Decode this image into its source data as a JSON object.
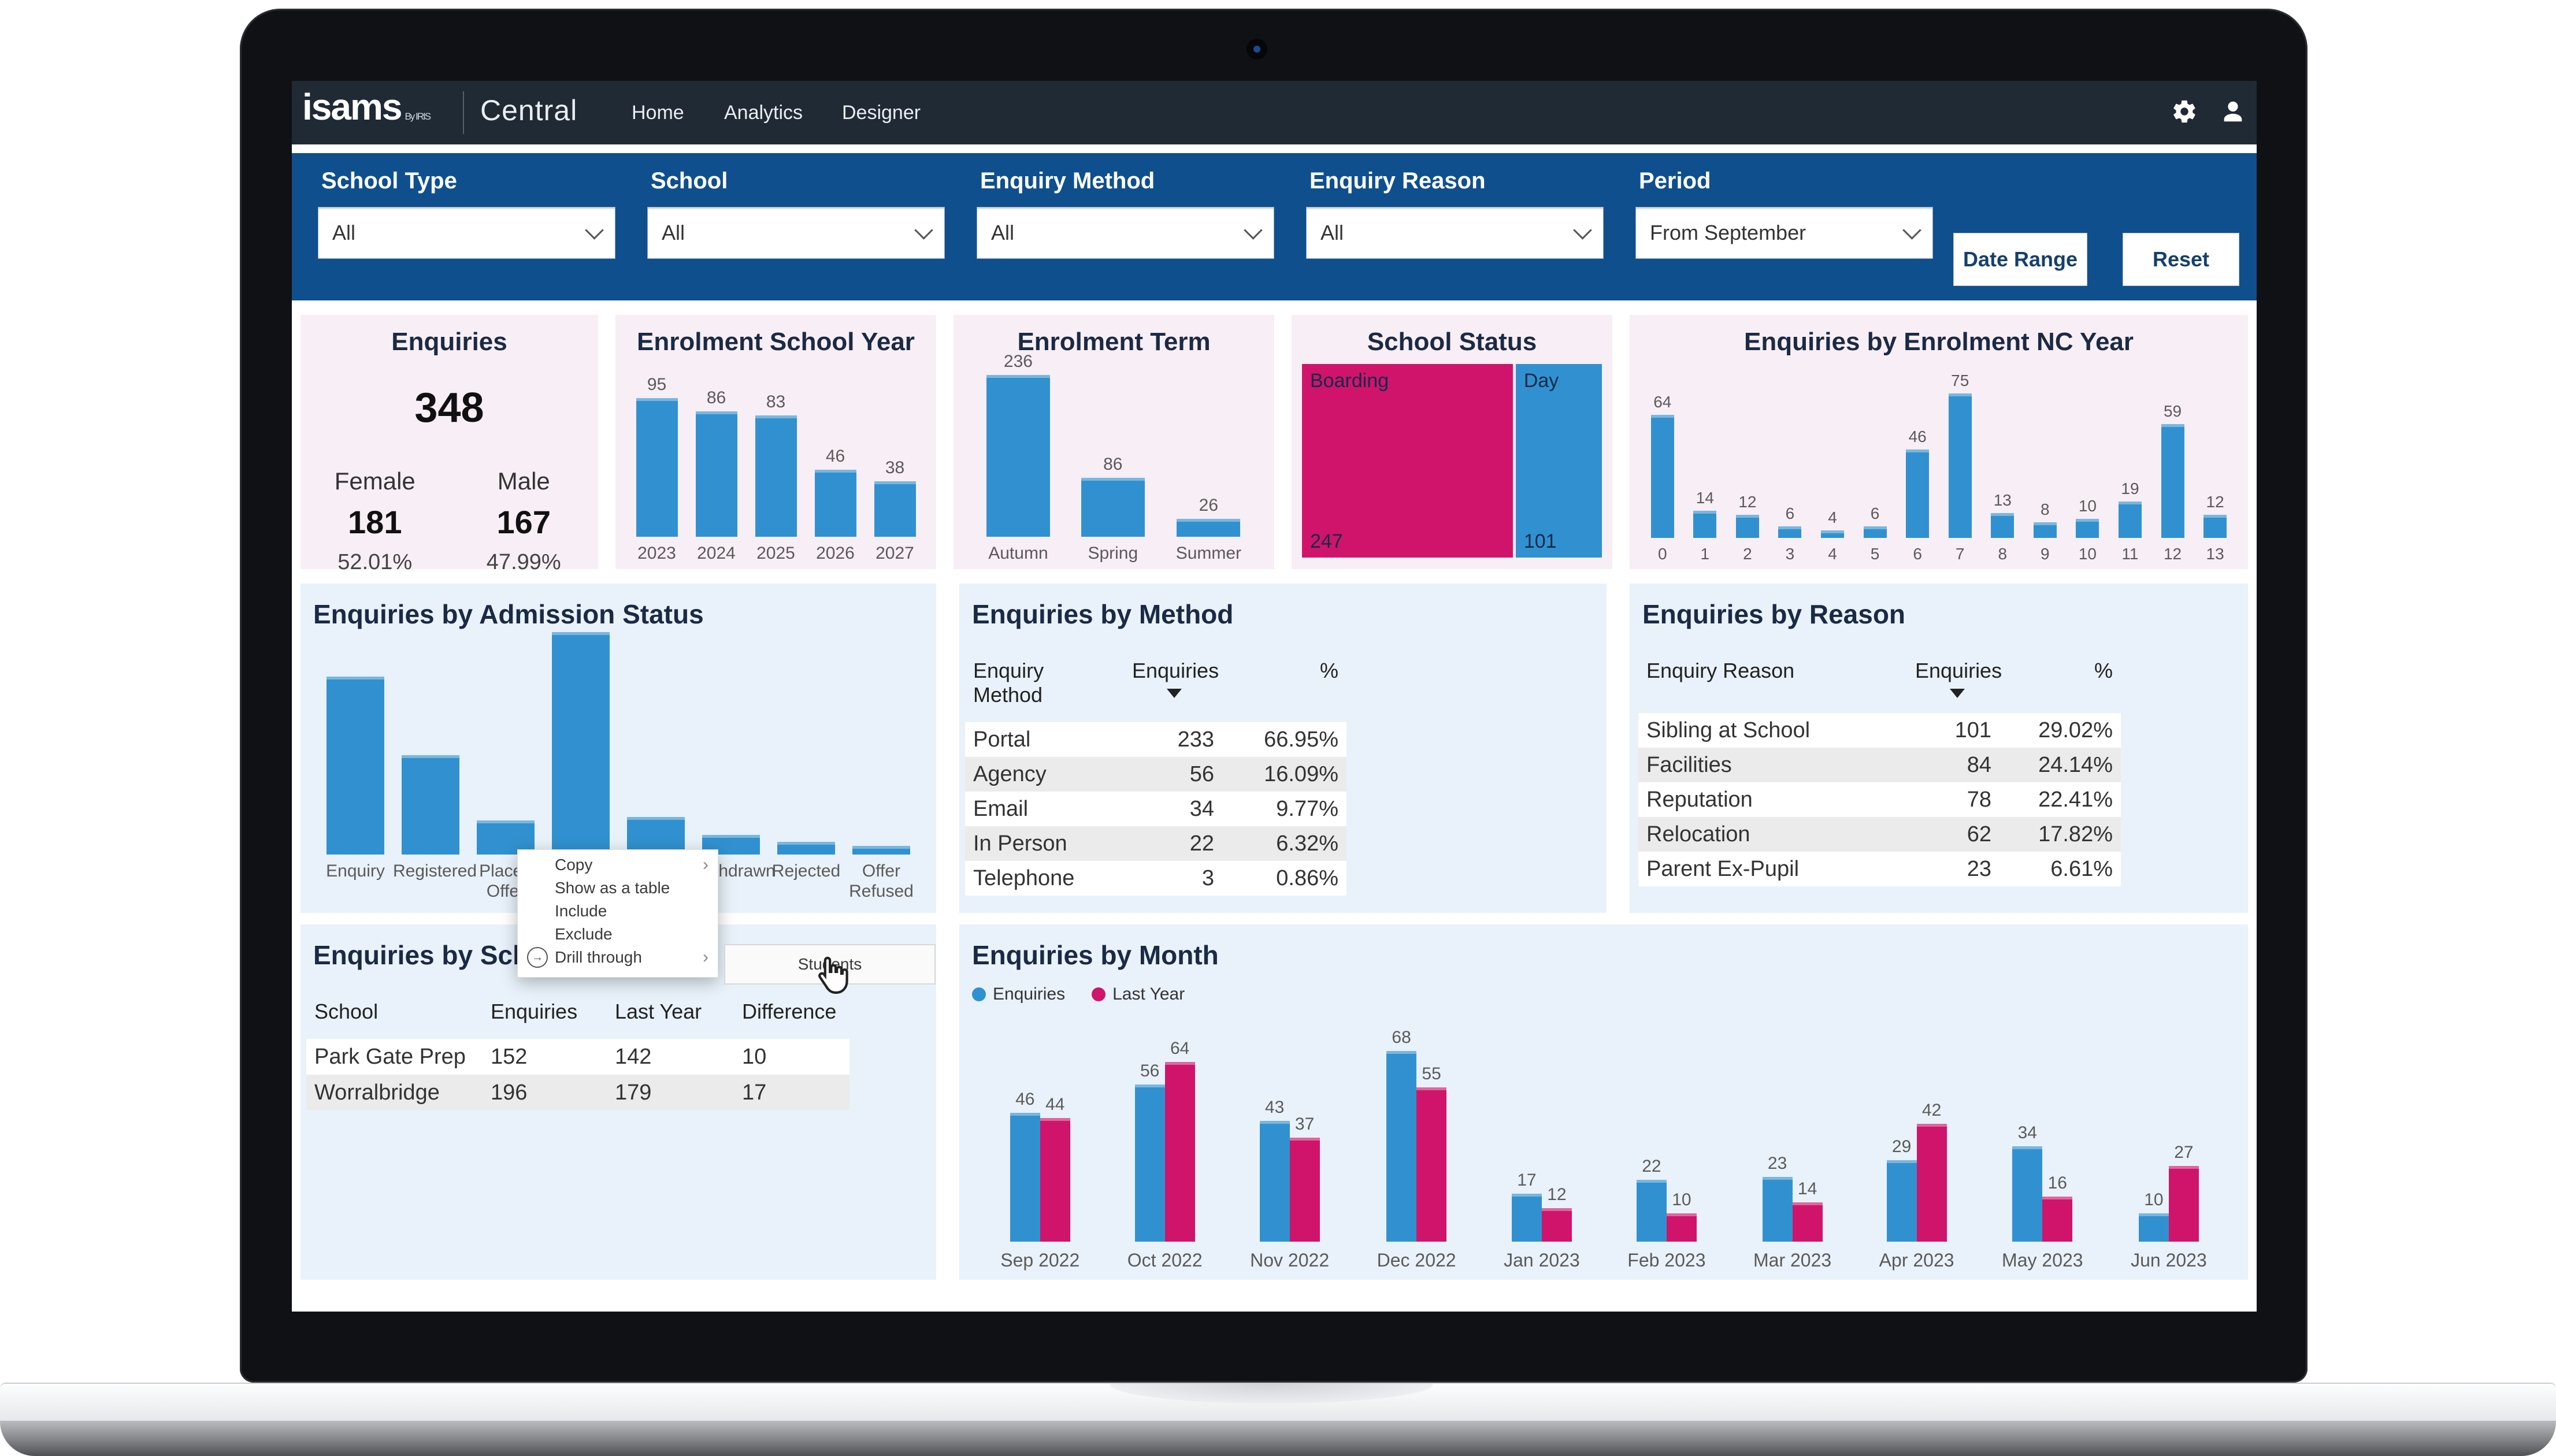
{
  "nav": {
    "brand": "isams",
    "brand_suffix": "By IRIS",
    "product": "Central",
    "items": [
      "Home",
      "Analytics",
      "Designer"
    ],
    "icons": [
      "gear-icon",
      "user-icon"
    ]
  },
  "filters": {
    "groups": [
      {
        "label": "School Type",
        "value": "All"
      },
      {
        "label": "School",
        "value": "All"
      },
      {
        "label": "Enquiry Method",
        "value": "All"
      },
      {
        "label": "Enquiry Reason",
        "value": "All"
      },
      {
        "label": "Period",
        "value": "From September"
      }
    ],
    "date_range_label": "Date Range",
    "reset_label": "Reset"
  },
  "cards": {
    "enquiries": {
      "title": "Enquiries",
      "total": "348",
      "female_label": "Female",
      "male_label": "Male",
      "female_count": "181",
      "male_count": "167",
      "female_pct": "52.01%",
      "male_pct": "47.99%"
    }
  },
  "colors": {
    "accent_blue": "#3191d0",
    "accent_magenta": "#d0146b",
    "navbar_bg": "#1f2a35",
    "filterbar_bg": "#0f4f8e",
    "card_bg": "#f8eef5",
    "panel_bg": "#e9f2fa"
  },
  "context_menu": {
    "items": [
      {
        "label": "Copy",
        "submenu": true
      },
      {
        "label": "Show as a table"
      },
      {
        "label": "Include"
      },
      {
        "label": "Exclude"
      },
      {
        "label": "Drill through",
        "icon": "drill-through-icon",
        "submenu": true
      }
    ],
    "submenu_label": "Students"
  },
  "chart_data": [
    {
      "id": "school_year",
      "type": "bar",
      "title": "Enrolment School Year",
      "categories": [
        "2023",
        "2024",
        "2025",
        "2026",
        "2027"
      ],
      "values": [
        95,
        86,
        83,
        46,
        38
      ],
      "data_labels": true,
      "color": "#3191d0",
      "ylim": [
        0,
        95
      ],
      "grid": false
    },
    {
      "id": "term",
      "type": "bar",
      "title": "Enrolment Term",
      "categories": [
        "Autumn",
        "Spring",
        "Summer"
      ],
      "values": [
        236,
        86,
        26
      ],
      "data_labels": true,
      "color": "#3191d0",
      "ylim": [
        0,
        236
      ],
      "grid": false
    },
    {
      "id": "school_status",
      "type": "treemap",
      "title": "School Status",
      "segments": [
        {
          "label": "Boarding",
          "value": 247,
          "color": "#d0146b"
        },
        {
          "label": "Day",
          "value": 101,
          "color": "#3191d0"
        }
      ]
    },
    {
      "id": "nc_year",
      "type": "bar",
      "title": "Enquiries by Enrolment NC Year",
      "categories": [
        "0",
        "1",
        "2",
        "3",
        "4",
        "5",
        "6",
        "7",
        "8",
        "9",
        "10",
        "11",
        "12",
        "13"
      ],
      "values": [
        64,
        14,
        12,
        6,
        4,
        6,
        46,
        75,
        13,
        8,
        10,
        19,
        59,
        12
      ],
      "data_labels": true,
      "color": "#3191d0",
      "ylim": [
        0,
        75
      ],
      "grid": false
    },
    {
      "id": "admission_status",
      "type": "bar",
      "title": "Enquiries by Admission Status",
      "categories": [
        "Enquiry",
        "Registered",
        "Placed Offer",
        "",
        "",
        "Withdrawn",
        "Rejected",
        "Offer Refused"
      ],
      "values": [
        100,
        56,
        19,
        125,
        21,
        11,
        7,
        5
      ],
      "data_labels": false,
      "color": "#3191d0",
      "grid": false,
      "note": "values estimated from bar heights; labels of bars 4-5 hidden behind context menu"
    },
    {
      "id": "method_table",
      "type": "table",
      "title": "Enquiries by Method",
      "columns": [
        "Enquiry Method",
        "Enquiries",
        "%"
      ],
      "sort_col_index": 1,
      "rows": [
        [
          "Portal",
          "233",
          "66.95%"
        ],
        [
          "Agency",
          "56",
          "16.09%"
        ],
        [
          "Email",
          "34",
          "9.77%"
        ],
        [
          "In Person",
          "22",
          "6.32%"
        ],
        [
          "Telephone",
          "3",
          "0.86%"
        ]
      ]
    },
    {
      "id": "reason_table",
      "type": "table",
      "title": "Enquiries by Reason",
      "columns": [
        "Enquiry Reason",
        "Enquiries",
        "%"
      ],
      "sort_col_index": 1,
      "rows": [
        [
          "Sibling at School",
          "101",
          "29.02%"
        ],
        [
          "Facilities",
          "84",
          "24.14%"
        ],
        [
          "Reputation",
          "78",
          "22.41%"
        ],
        [
          "Relocation",
          "62",
          "17.82%"
        ],
        [
          "Parent Ex-Pupil",
          "23",
          "6.61%"
        ]
      ]
    },
    {
      "id": "school_table",
      "type": "table",
      "title": "Enquiries by School",
      "columns": [
        "School",
        "Enquiries",
        "Last Year",
        "Difference"
      ],
      "rows": [
        [
          "Park Gate Prep",
          "152",
          "142",
          "10"
        ],
        [
          "Worralbridge",
          "196",
          "179",
          "17"
        ]
      ]
    },
    {
      "id": "by_month",
      "type": "bar-grouped",
      "title": "Enquiries by Month",
      "categories": [
        "Sep 2022",
        "Oct 2022",
        "Nov 2022",
        "Dec 2022",
        "Jan 2023",
        "Feb 2023",
        "Mar 2023",
        "Apr 2023",
        "May 2023",
        "Jun 2023"
      ],
      "series": [
        {
          "name": "Enquiries",
          "color": "#3191d0",
          "values": [
            46,
            56,
            43,
            68,
            17,
            22,
            23,
            29,
            34,
            10
          ]
        },
        {
          "name": "Last Year",
          "color": "#d0146b",
          "values": [
            44,
            64,
            37,
            55,
            12,
            10,
            14,
            42,
            16,
            27
          ]
        }
      ],
      "legend": "top-left",
      "data_labels": true,
      "ylim": [
        0,
        68
      ],
      "grid": false
    }
  ]
}
